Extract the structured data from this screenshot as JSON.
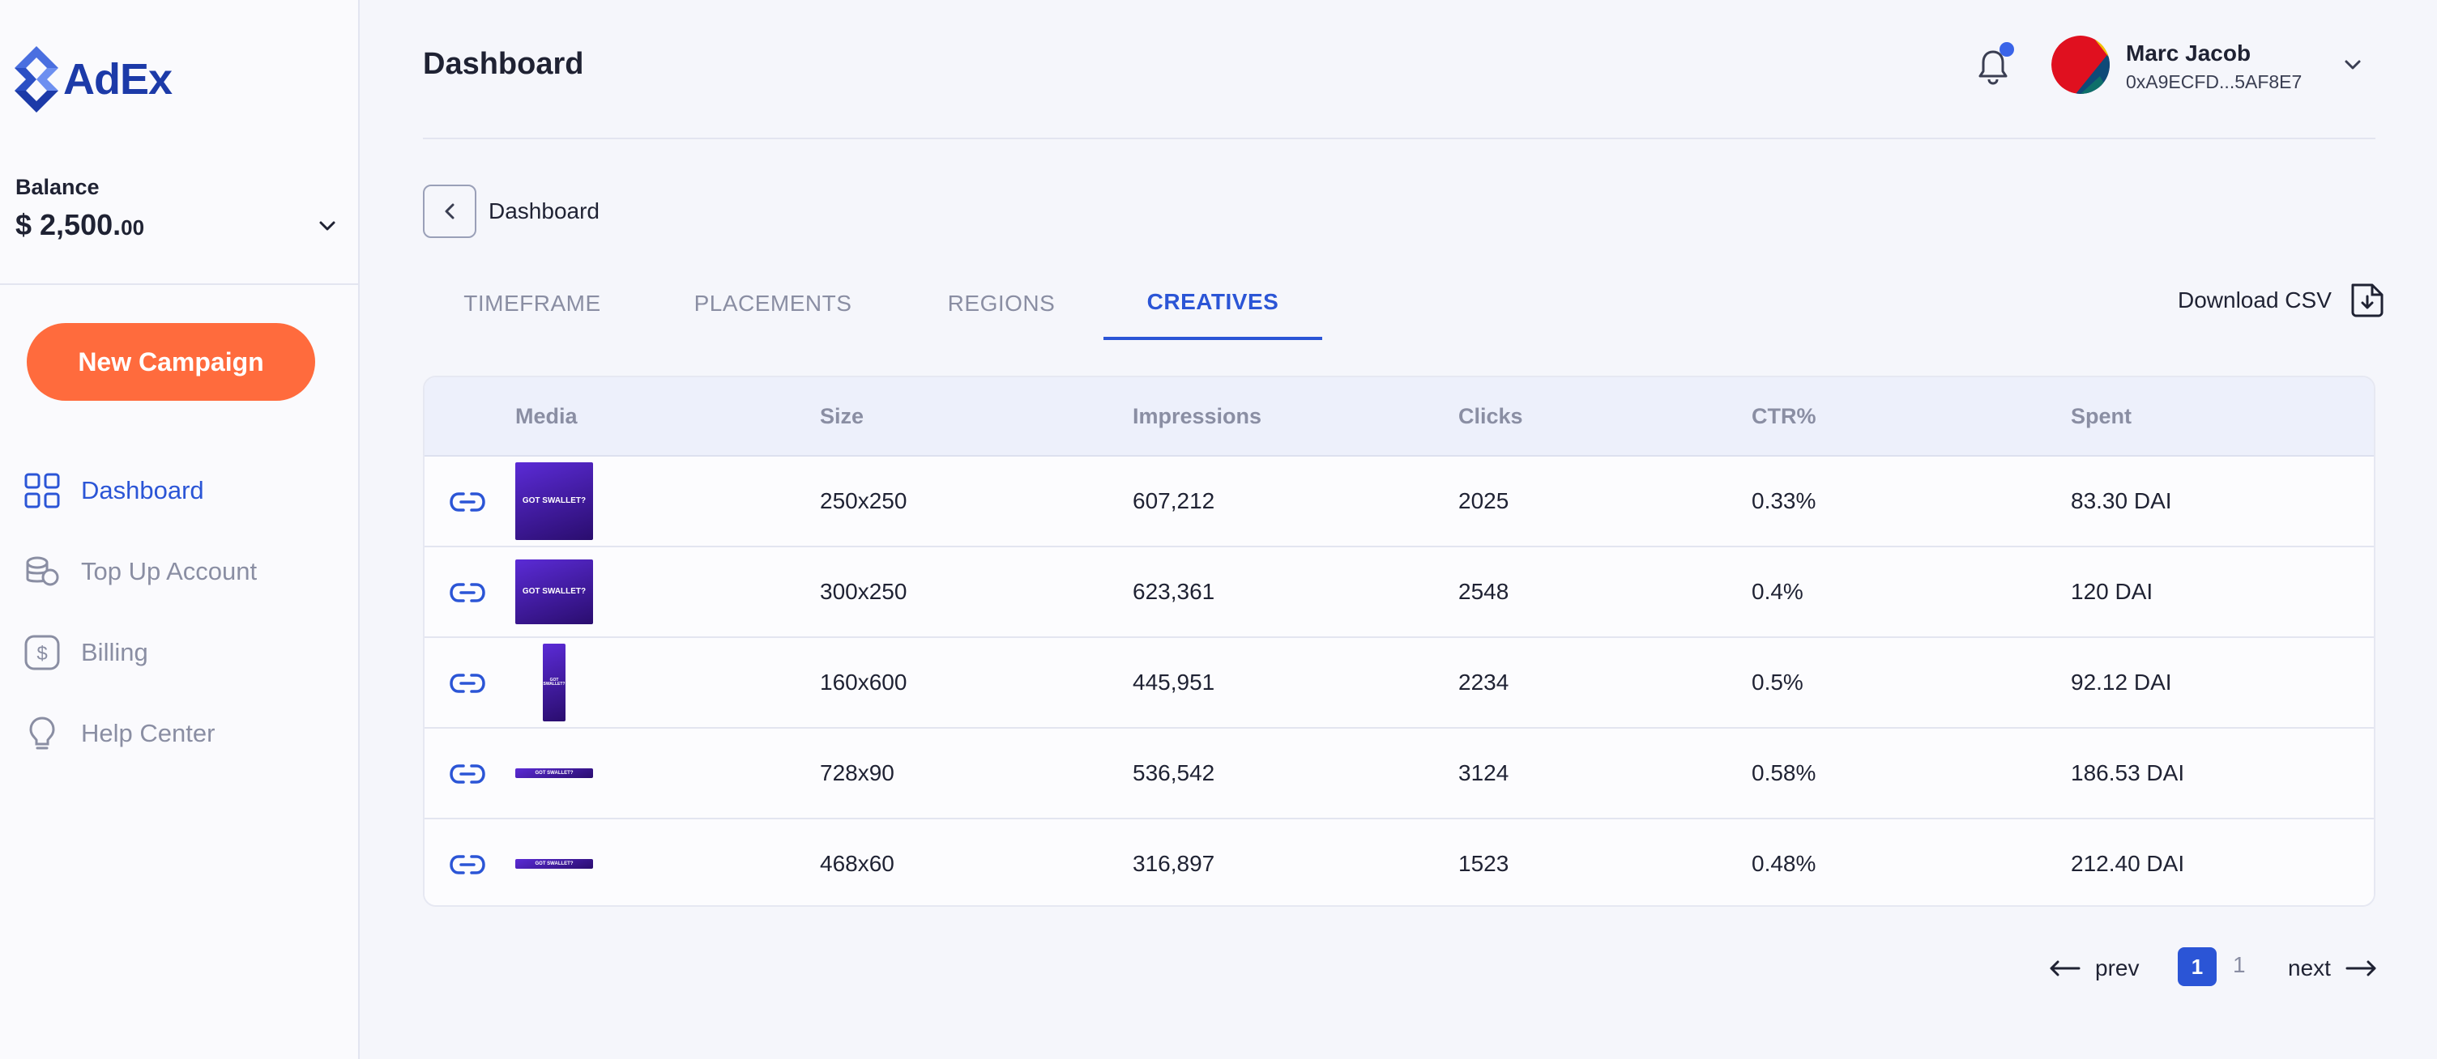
{
  "app": {
    "brand": "AdEx",
    "brand_color": "#1c3aa8",
    "accent": "#2b55d6",
    "cta_color": "#ff6b3d"
  },
  "sidebar": {
    "balance_label": "Balance",
    "balance_main": "$ 2,500.",
    "balance_cents": "00",
    "new_campaign": "New Campaign",
    "items": [
      {
        "label": "Dashboard",
        "icon": "grid-icon",
        "active": true
      },
      {
        "label": "Top Up Account",
        "icon": "coins-icon",
        "active": false
      },
      {
        "label": "Billing",
        "icon": "dollar-icon",
        "active": false
      },
      {
        "label": "Help Center",
        "icon": "lightbulb-icon",
        "active": false
      }
    ]
  },
  "header": {
    "title": "Dashboard",
    "user_name": "Marc Jacob",
    "user_address": "0xA9ECFD...5AF8E7"
  },
  "breadcrumb": {
    "label": "Dashboard"
  },
  "tabs": [
    {
      "label": "TIMEFRAME",
      "active": false
    },
    {
      "label": "PLACEMENTS",
      "active": false
    },
    {
      "label": "REGIONS",
      "active": false
    },
    {
      "label": "CREATIVES",
      "active": true
    }
  ],
  "download_label": "Download CSV",
  "table": {
    "headers": [
      "Media",
      "Size",
      "Impressions",
      "Clicks",
      "CTR%",
      "Spent"
    ],
    "rows": [
      {
        "size": "250x250",
        "impressions": "607,212",
        "clicks": "2025",
        "ctr": "0.33%",
        "spent": "83.30 DAI",
        "media_text": "GOT SWALLET?"
      },
      {
        "size": "300x250",
        "impressions": "623,361",
        "clicks": "2548",
        "ctr": "0.4%",
        "spent": "120 DAI",
        "media_text": "GOT SWALLET?"
      },
      {
        "size": "160x600",
        "impressions": "445,951",
        "clicks": "2234",
        "ctr": "0.5%",
        "spent": "92.12 DAI",
        "media_text": "GOT SWALLET?"
      },
      {
        "size": "728x90",
        "impressions": "536,542",
        "clicks": "3124",
        "ctr": "0.58%",
        "spent": "186.53 DAI",
        "media_text": "GOT SWALLET?"
      },
      {
        "size": "468x60",
        "impressions": "316,897",
        "clicks": "1523",
        "ctr": "0.48%",
        "spent": "212.40 DAI",
        "media_text": "GOT SWALLET?"
      }
    ]
  },
  "pagination": {
    "prev": "prev",
    "next": "next",
    "current": "1",
    "total": "1"
  }
}
